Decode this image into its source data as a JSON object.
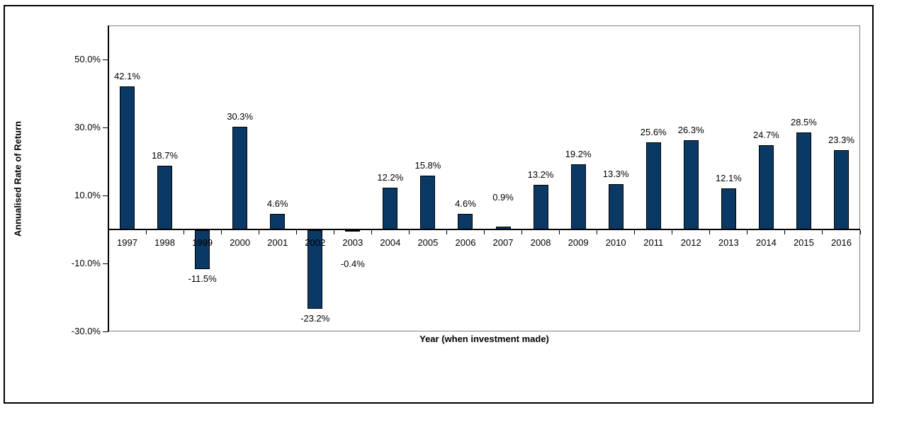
{
  "chart_data": {
    "type": "bar",
    "title": "",
    "xlabel": "Year (when investment made)",
    "ylabel": "Annualised Rate of Return",
    "categories": [
      "1997",
      "1998",
      "1999",
      "2000",
      "2001",
      "2002",
      "2003",
      "2004",
      "2005",
      "2006",
      "2007",
      "2008",
      "2009",
      "2010",
      "2011",
      "2012",
      "2013",
      "2014",
      "2015",
      "2016"
    ],
    "values": [
      42.1,
      18.7,
      -11.5,
      30.3,
      4.6,
      -23.2,
      -0.4,
      12.2,
      15.8,
      4.6,
      0.9,
      13.2,
      19.2,
      13.3,
      25.6,
      26.3,
      12.1,
      24.7,
      28.5,
      23.3
    ],
    "data_labels": [
      "42.1%",
      "18.7%",
      "-11.5%",
      "30.3%",
      "4.6%",
      "-23.2%",
      "-0.4%",
      "12.2%",
      "15.8%",
      "4.6%",
      "0.9%",
      "13.2%",
      "19.2%",
      "13.3%",
      "25.6%",
      "26.3%",
      "12.1%",
      "24.7%",
      "28.5%",
      "23.3%"
    ],
    "ylim": [
      -30,
      60
    ],
    "yticks": [
      50,
      30,
      10,
      -10,
      -30
    ],
    "ytick_labels": [
      "50.0%",
      "30.0%",
      "10.0%",
      "-10.0%",
      "-30.0%"
    ],
    "grid": false,
    "legend": null,
    "colors": {
      "bar_fill": "#0B3966",
      "bar_border": "#000000",
      "axis_line": "#000000",
      "plot_border": "#808080",
      "frame_border": "#000000",
      "background": "#FFFFFF"
    }
  }
}
